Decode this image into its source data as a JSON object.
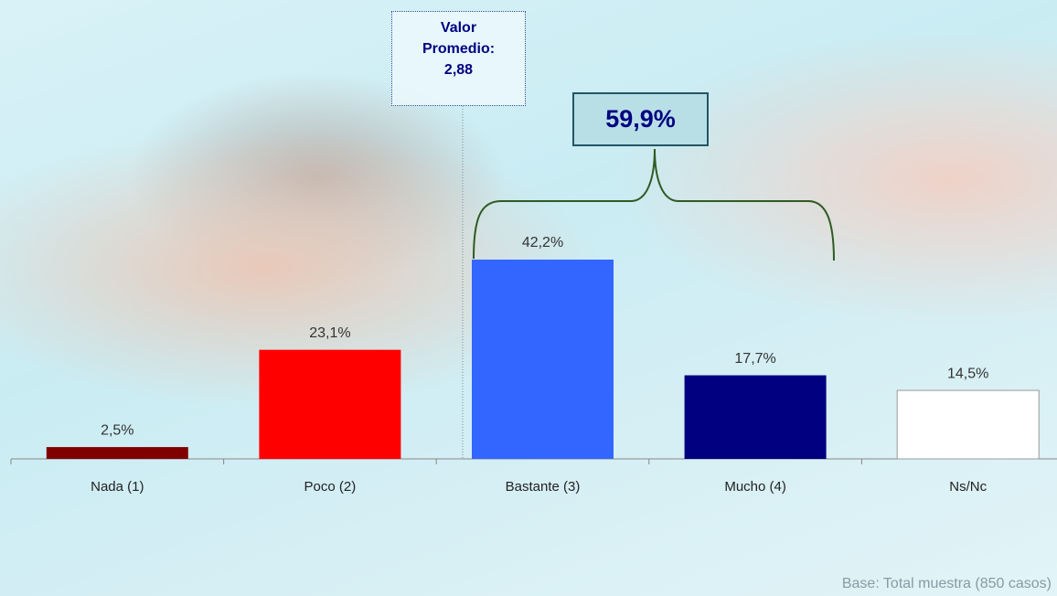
{
  "chart_data": {
    "type": "bar",
    "categories": [
      "Nada (1)",
      "Poco (2)",
      "Bastante (3)",
      "Mucho (4)",
      "Ns/Nc"
    ],
    "values": [
      2.5,
      23.1,
      42.2,
      17.7,
      14.5
    ],
    "value_labels": [
      "2,5%",
      "23,1%",
      "42,2%",
      "17,7%",
      "14,5%"
    ],
    "colors": [
      "#800000",
      "#ff0000",
      "#3366ff",
      "#000080",
      "#ffffff"
    ],
    "annotations": {
      "mean": {
        "label": "Valor Promedio:",
        "value": 2.88,
        "value_label": "2,88"
      },
      "group_total": {
        "value": 59.9,
        "label": "59,9%"
      },
      "base_note": "Base: Total muestra (850 casos)"
    }
  }
}
